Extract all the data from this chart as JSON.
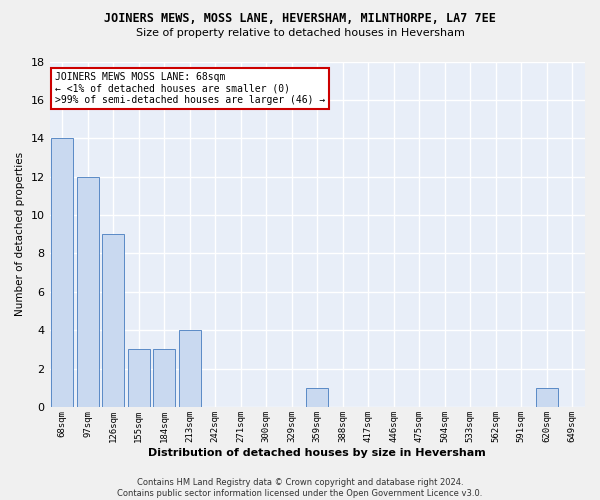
{
  "title": "JOINERS MEWS, MOSS LANE, HEVERSHAM, MILNTHORPE, LA7 7EE",
  "subtitle": "Size of property relative to detached houses in Heversham",
  "xlabel": "Distribution of detached houses by size in Heversham",
  "ylabel": "Number of detached properties",
  "categories": [
    "68sqm",
    "97sqm",
    "126sqm",
    "155sqm",
    "184sqm",
    "213sqm",
    "242sqm",
    "271sqm",
    "300sqm",
    "329sqm",
    "359sqm",
    "388sqm",
    "417sqm",
    "446sqm",
    "475sqm",
    "504sqm",
    "533sqm",
    "562sqm",
    "591sqm",
    "620sqm",
    "649sqm"
  ],
  "values": [
    14,
    12,
    9,
    3,
    3,
    4,
    0,
    0,
    0,
    0,
    1,
    0,
    0,
    0,
    0,
    0,
    0,
    0,
    0,
    1,
    0
  ],
  "bar_color": "#c9d9f0",
  "bar_edge_color": "#5a8ac6",
  "annotation_line1": "JOINERS MEWS MOSS LANE: 68sqm",
  "annotation_line2": "← <1% of detached houses are smaller (0)",
  "annotation_line3": ">99% of semi-detached houses are larger (46) →",
  "annotation_box_color": "#ffffff",
  "annotation_box_edge_color": "#cc0000",
  "ylim": [
    0,
    18
  ],
  "yticks": [
    0,
    2,
    4,
    6,
    8,
    10,
    12,
    14,
    16,
    18
  ],
  "background_color": "#e8eef8",
  "grid_color": "#ffffff",
  "fig_background": "#f0f0f0",
  "footer_line1": "Contains HM Land Registry data © Crown copyright and database right 2024.",
  "footer_line2": "Contains public sector information licensed under the Open Government Licence v3.0."
}
